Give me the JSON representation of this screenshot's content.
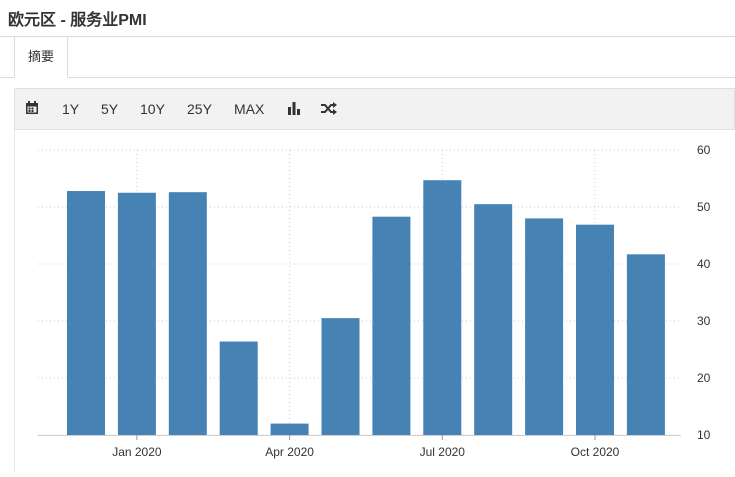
{
  "page": {
    "title": "欧元区 - 服务业PMI"
  },
  "tabs": [
    {
      "label": "摘要"
    }
  ],
  "toolbar": {
    "ranges": [
      "1Y",
      "5Y",
      "10Y",
      "25Y",
      "MAX"
    ],
    "icons": [
      "calendar-icon",
      "bar-chart-icon",
      "shuffle-icon"
    ]
  },
  "colors": {
    "bar": "#4682b4",
    "grid": "#cccccc",
    "axis": "#333333"
  },
  "chart_data": {
    "type": "bar",
    "categories": [
      "Dec 2019",
      "Jan 2020",
      "Feb 2020",
      "Mar 2020",
      "Apr 2020",
      "May 2020",
      "Jun 2020",
      "Jul 2020",
      "Aug 2020",
      "Sep 2020",
      "Oct 2020",
      "Nov 2020"
    ],
    "values": [
      52.8,
      52.5,
      52.6,
      26.4,
      12.0,
      30.5,
      48.3,
      54.7,
      50.5,
      48.0,
      46.9,
      41.7
    ],
    "x_tick_labels": [
      "Jan 2020",
      "Apr 2020",
      "Jul 2020",
      "Oct 2020"
    ],
    "x_tick_indices": [
      1,
      4,
      7,
      10
    ],
    "yticks": [
      10,
      20,
      30,
      40,
      50,
      60
    ],
    "ylim": [
      10,
      60
    ],
    "y_axis_side": "right",
    "grid": "dotted",
    "title": "欧元区 - 服务业PMI"
  }
}
